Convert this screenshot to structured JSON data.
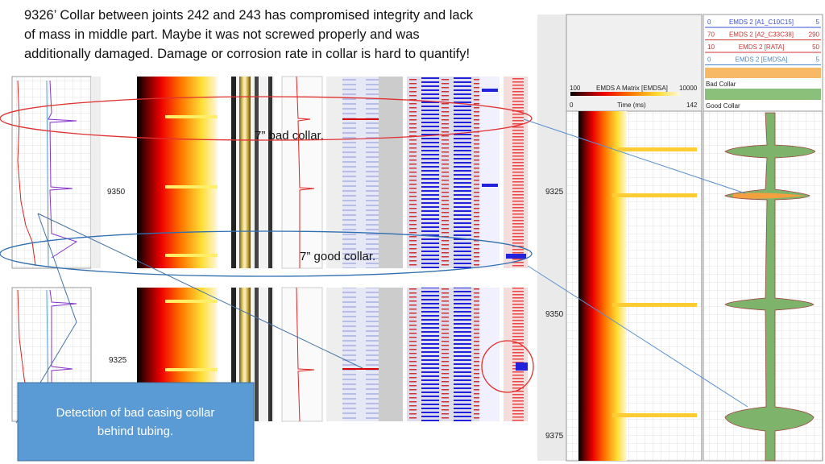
{
  "slide": {
    "title_lines": [
      "9326’ Collar between joints 242 and 243 has compromised integrity and lack",
      "of mass in middle part. Maybe it was not screwed properly and was",
      "additionally damaged. Damage or corrosion rate in collar is hard to quantify!"
    ],
    "callouts": {
      "bad": "7” bad collar.",
      "good": "7” good collar.",
      "box_lines": [
        "Detection of bad casing collar",
        "behind tubing."
      ]
    },
    "left_depths": {
      "top": "9350",
      "bottom": "9325"
    },
    "right_depths": [
      "9325",
      "9350",
      "9375"
    ],
    "legend": [
      {
        "min": 0,
        "name": "EMDS 2 [A1_C10C15]",
        "max": 5,
        "color": "#3a4fd0"
      },
      {
        "min": 70,
        "name": "EMDS 2 [A2_C33C38]",
        "max": 290,
        "color": "#d03030"
      },
      {
        "min": 10,
        "name": "EMDS 2 [RATA]",
        "max": 50,
        "color": "#d03030"
      },
      {
        "min": 0,
        "name": "EMDS 2 [EMDSA]",
        "max": 5,
        "color": "#4a8ac8"
      }
    ],
    "flags": {
      "bad": "Bad Collar",
      "good": "Good Collar"
    },
    "matrix": {
      "min": 100,
      "name": "EMDS A Matrix [EMDSA]",
      "max": 10000
    },
    "time": {
      "min": 0,
      "name": "Time (ms)",
      "max": 142
    }
  }
}
